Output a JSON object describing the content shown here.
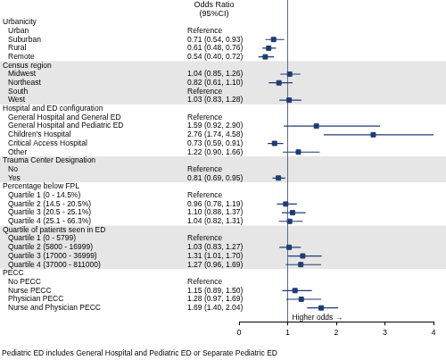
{
  "chart_data": {
    "type": "forest",
    "column_header": [
      "Odds Ratio",
      "(95%CI)"
    ],
    "annotation": "Higher odds →",
    "footnote": "Pediatric ED includes General Hospital and Pediatric ED or Separate Pediatric ED",
    "xlim": [
      0,
      4
    ],
    "xticks": [
      0,
      1,
      2,
      3,
      4
    ],
    "reference_value": 1,
    "color": "#1f3b73",
    "marker": "square",
    "grid": false,
    "groups": [
      {
        "name": "Urbanicity",
        "rows": [
          {
            "label": "Urban",
            "value_label": "Reference"
          },
          {
            "label": "Suburban",
            "value": 0.71,
            "ci": [
              0.54,
              0.93
            ],
            "value_label": "0.71 (0.54, 0.93)"
          },
          {
            "label": "Rural",
            "value": 0.61,
            "ci": [
              0.48,
              0.76
            ],
            "value_label": "0.61 (0.48, 0.76)"
          },
          {
            "label": "Remote",
            "value": 0.54,
            "ci": [
              0.4,
              0.72
            ],
            "value_label": "0.54 (0.40, 0.72)"
          }
        ]
      },
      {
        "name": "Census region",
        "rows": [
          {
            "label": "Midwest",
            "value": 1.04,
            "ci": [
              0.85,
              1.26
            ],
            "value_label": "1.04 (0.85, 1.26)"
          },
          {
            "label": "Northeast",
            "value": 0.82,
            "ci": [
              0.61,
              1.1
            ],
            "value_label": "0.82 (0.61, 1.10)"
          },
          {
            "label": "South",
            "value_label": "Reference"
          },
          {
            "label": "West",
            "value": 1.03,
            "ci": [
              0.83,
              1.28
            ],
            "value_label": "1.03 (0.83, 1.28)"
          }
        ]
      },
      {
        "name": "Hospital and ED configuration",
        "rows": [
          {
            "label": "General Hospital and General ED",
            "value_label": "Reference"
          },
          {
            "label": "General Hospital and Pediatric ED",
            "value": 1.59,
            "ci": [
              0.92,
              2.9
            ],
            "value_label": "1.59 (0.92, 2.90)"
          },
          {
            "label": "Children's Hospital",
            "value": 2.76,
            "ci": [
              1.74,
              4.58
            ],
            "value_label": "2.76 (1.74, 4.58)"
          },
          {
            "label": "Critical Access Hospital",
            "value": 0.73,
            "ci": [
              0.59,
              0.91
            ],
            "value_label": "0.73 (0.59, 0.91)"
          },
          {
            "label": "Other",
            "value": 1.22,
            "ci": [
              0.9,
              1.66
            ],
            "value_label": "1.22 (0.90, 1.66)"
          }
        ]
      },
      {
        "name": "Trauma Center Designation",
        "rows": [
          {
            "label": "No",
            "value_label": "Reference"
          },
          {
            "label": "Yes",
            "value": 0.81,
            "ci": [
              0.69,
              0.95
            ],
            "value_label": "0.81 (0.69, 0.95)"
          }
        ]
      },
      {
        "name": "Percentage below FPL",
        "rows": [
          {
            "label": "Quartile 1 (0 - 14.5%)",
            "value_label": "Reference"
          },
          {
            "label": "Quartile 2 (14.5 - 20.5%)",
            "value": 0.96,
            "ci": [
              0.78,
              1.19
            ],
            "value_label": "0.96 (0.78, 1.19)"
          },
          {
            "label": "Quartile 3 (20.5 - 25.1%)",
            "value": 1.1,
            "ci": [
              0.88,
              1.37
            ],
            "value_label": "1.10 (0.88, 1.37)"
          },
          {
            "label": "Quartile 4 (25.1 - 66.3%)",
            "value": 1.04,
            "ci": [
              0.82,
              1.31
            ],
            "value_label": "1.04 (0.82, 1.31)"
          }
        ]
      },
      {
        "name": "Quartile of patients seen in ED",
        "rows": [
          {
            "label": "Quartile 1 (0 - 5799)",
            "value_label": "Reference"
          },
          {
            "label": "Quartile 2 (5800 - 16999)",
            "value": 1.03,
            "ci": [
              0.83,
              1.27
            ],
            "value_label": "1.03 (0.83, 1.27)"
          },
          {
            "label": "Quartile 3 (17000 - 36999)",
            "value": 1.31,
            "ci": [
              1.01,
              1.7
            ],
            "value_label": "1.31 (1.01, 1.70)"
          },
          {
            "label": "Quartile 4 (37000 - 811000)",
            "value": 1.27,
            "ci": [
              0.96,
              1.69
            ],
            "value_label": "1.27 (0.96, 1.69)"
          }
        ]
      },
      {
        "name": "PECC",
        "rows": [
          {
            "label": "No PECC",
            "value_label": "Reference"
          },
          {
            "label": "Nurse PECC",
            "value": 1.15,
            "ci": [
              0.89,
              1.5
            ],
            "value_label": "1.15 (0.89, 1.50)"
          },
          {
            "label": "Physician PECC",
            "value": 1.28,
            "ci": [
              0.97,
              1.69
            ],
            "value_label": "1.28 (0.97, 1.69)"
          },
          {
            "label": "Nurse and Physician PECC",
            "value": 1.69,
            "ci": [
              1.4,
              2.04
            ],
            "value_label": "1.69 (1.40, 2.04)"
          }
        ]
      }
    ]
  }
}
